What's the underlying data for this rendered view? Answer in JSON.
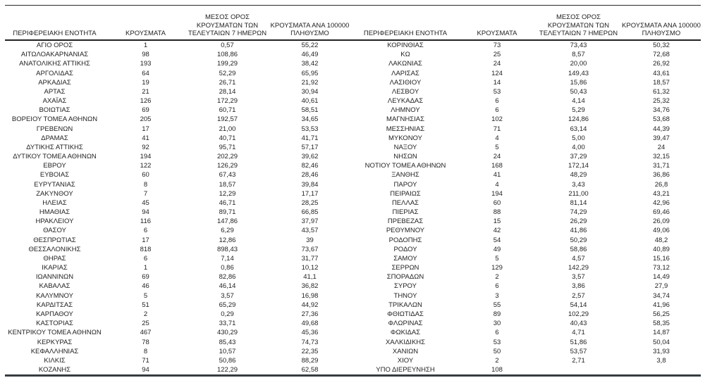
{
  "table": {
    "headers": {
      "region": "ΠΕΡΙΦΕΡΕΙΑΚΗ ΕΝΟΤΗΤΑ",
      "cases": "ΚΡΟΥΣΜΑΤΑ",
      "avg7": "ΜΕΣΟΣ ΟΡΟΣ\nΚΡΟΥΣΜΑΤΩΝ ΤΩΝ\nΤΕΛΕΥΤΑΙΩΝ 7 ΗΜΕΡΩΝ",
      "per100k": "ΚΡΟΥΣΜΑΤΑ ΑΝΑ 100000\nΠΛΗΘΥΣΜΟ"
    },
    "left_rows": [
      [
        "ΑΓΙΟ ΟΡΟΣ",
        "1",
        "0,57",
        "55,22"
      ],
      [
        "ΑΙΤΩΛΟΑΚΑΡΝΑΝΙΑΣ",
        "98",
        "108,86",
        "46,49"
      ],
      [
        "ΑΝΑΤΟΛΙΚΗΣ ΑΤΤΙΚΗΣ",
        "193",
        "199,29",
        "38,42"
      ],
      [
        "ΑΡΓΟΛΙΔΑΣ",
        "64",
        "52,29",
        "65,95"
      ],
      [
        "ΑΡΚΑΔΙΑΣ",
        "19",
        "26,71",
        "21,92"
      ],
      [
        "ΑΡΤΑΣ",
        "21",
        "28,14",
        "30,94"
      ],
      [
        "ΑΧΑΪΑΣ",
        "126",
        "172,29",
        "40,61"
      ],
      [
        "ΒΟΙΩΤΙΑΣ",
        "69",
        "60,71",
        "58,51"
      ],
      [
        "ΒΟΡΕΙΟΥ ΤΟΜΕΑ ΑΘΗΝΩΝ",
        "205",
        "192,57",
        "34,65"
      ],
      [
        "ΓΡΕΒΕΝΩΝ",
        "17",
        "21,00",
        "53,53"
      ],
      [
        "ΔΡΑΜΑΣ",
        "41",
        "40,71",
        "41,71"
      ],
      [
        "ΔΥΤΙΚΗΣ ΑΤΤΙΚΗΣ",
        "92",
        "95,71",
        "57,17"
      ],
      [
        "ΔΥΤΙΚΟΥ ΤΟΜΕΑ ΑΘΗΝΩΝ",
        "194",
        "202,29",
        "39,62"
      ],
      [
        "ΕΒΡΟΥ",
        "122",
        "126,29",
        "82,46"
      ],
      [
        "ΕΥΒΟΙΑΣ",
        "60",
        "67,43",
        "28,46"
      ],
      [
        "ΕΥΡΥΤΑΝΙΑΣ",
        "8",
        "18,57",
        "39,84"
      ],
      [
        "ΖΑΚΥΝΘΟΥ",
        "7",
        "12,29",
        "17,17"
      ],
      [
        "ΗΛΕΙΑΣ",
        "45",
        "46,71",
        "28,25"
      ],
      [
        "ΗΜΑΘΙΑΣ",
        "94",
        "89,71",
        "66,85"
      ],
      [
        "ΗΡΑΚΛΕΙΟΥ",
        "116",
        "147,86",
        "37,97"
      ],
      [
        "ΘΑΣΟΥ",
        "6",
        "6,29",
        "43,57"
      ],
      [
        "ΘΕΣΠΡΩΤΙΑΣ",
        "17",
        "12,86",
        "39"
      ],
      [
        "ΘΕΣΣΑΛΟΝΙΚΗΣ",
        "818",
        "898,43",
        "73,67"
      ],
      [
        "ΘΗΡΑΣ",
        "6",
        "7,14",
        "31,77"
      ],
      [
        "ΙΚΑΡΙΑΣ",
        "1",
        "0,86",
        "10,12"
      ],
      [
        "ΙΩΑΝΝΙΝΩΝ",
        "69",
        "82,86",
        "41,1"
      ],
      [
        "ΚΑΒΑΛΑΣ",
        "46",
        "46,14",
        "36,82"
      ],
      [
        "ΚΑΛΥΜΝΟΥ",
        "5",
        "3,57",
        "16,98"
      ],
      [
        "ΚΑΡΔΙΤΣΑΣ",
        "51",
        "65,29",
        "44,92"
      ],
      [
        "ΚΑΡΠΑΘΟΥ",
        "2",
        "0,29",
        "27,36"
      ],
      [
        "ΚΑΣΤΟΡΙΑΣ",
        "25",
        "33,71",
        "49,68"
      ],
      [
        "ΚΕΝΤΡΙΚΟΥ ΤΟΜΕΑ ΑΘΗΝΩΝ",
        "467",
        "430,29",
        "45,36"
      ],
      [
        "ΚΕΡΚΥΡΑΣ",
        "78",
        "85,43",
        "74,73"
      ],
      [
        "ΚΕΦΑΛΛΗΝΙΑΣ",
        "8",
        "10,57",
        "22,35"
      ],
      [
        "ΚΙΛΚΙΣ",
        "71",
        "50,86",
        "88,29"
      ],
      [
        "ΚΟΖΑΝΗΣ",
        "94",
        "122,29",
        "62,58"
      ]
    ],
    "right_rows": [
      [
        "ΚΟΡΙΝΘΙΑΣ",
        "73",
        "73,43",
        "50,32"
      ],
      [
        "ΚΩ",
        "25",
        "8,57",
        "72,68"
      ],
      [
        "ΛΑΚΩΝΙΑΣ",
        "24",
        "20,00",
        "26,92"
      ],
      [
        "ΛΑΡΙΣΑΣ",
        "124",
        "149,43",
        "43,61"
      ],
      [
        "ΛΑΣΙΘΙΟΥ",
        "14",
        "15,86",
        "18,57"
      ],
      [
        "ΛΕΣΒΟΥ",
        "53",
        "50,43",
        "61,32"
      ],
      [
        "ΛΕΥΚΑΔΑΣ",
        "6",
        "4,14",
        "25,32"
      ],
      [
        "ΛΗΜΝΟΥ",
        "6",
        "5,29",
        "34,76"
      ],
      [
        "ΜΑΓΝΗΣΙΑΣ",
        "102",
        "124,86",
        "53,68"
      ],
      [
        "ΜΕΣΣΗΝΙΑΣ",
        "71",
        "63,14",
        "44,39"
      ],
      [
        "ΜΥΚΟΝΟΥ",
        "4",
        "5,00",
        "39,47"
      ],
      [
        "ΝΑΞΟΥ",
        "5",
        "4,00",
        "24"
      ],
      [
        "ΝΗΣΩΝ",
        "24",
        "37,29",
        "32,15"
      ],
      [
        "ΝΟΤΙΟΥ ΤΟΜΕΑ ΑΘΗΝΩΝ",
        "168",
        "172,14",
        "31,71"
      ],
      [
        "ΞΑΝΘΗΣ",
        "41",
        "48,29",
        "36,86"
      ],
      [
        "ΠΑΡΟΥ",
        "4",
        "3,43",
        "26,8"
      ],
      [
        "ΠΕΙΡΑΙΩΣ",
        "194",
        "211,00",
        "43,21"
      ],
      [
        "ΠΕΛΛΑΣ",
        "60",
        "81,14",
        "42,96"
      ],
      [
        "ΠΙΕΡΙΑΣ",
        "88",
        "74,29",
        "69,46"
      ],
      [
        "ΠΡΕΒΕΖΑΣ",
        "15",
        "26,29",
        "26,09"
      ],
      [
        "ΡΕΘΥΜΝΟΥ",
        "42",
        "41,86",
        "49,06"
      ],
      [
        "ΡΟΔΟΠΗΣ",
        "54",
        "50,29",
        "48,2"
      ],
      [
        "ΡΟΔΟΥ",
        "49",
        "58,86",
        "40,89"
      ],
      [
        "ΣΑΜΟΥ",
        "5",
        "4,57",
        "15,16"
      ],
      [
        "ΣΕΡΡΩΝ",
        "129",
        "142,29",
        "73,12"
      ],
      [
        "ΣΠΟΡΑΔΩΝ",
        "2",
        "3,57",
        "14,49"
      ],
      [
        "ΣΥΡΟΥ",
        "6",
        "3,86",
        "27,9"
      ],
      [
        "ΤΗΝΟΥ",
        "3",
        "2,57",
        "34,74"
      ],
      [
        "ΤΡΙΚΑΛΩΝ",
        "55",
        "54,14",
        "41,96"
      ],
      [
        "ΦΘΙΩΤΙΔΑΣ",
        "89",
        "102,29",
        "56,25"
      ],
      [
        "ΦΛΩΡΙΝΑΣ",
        "30",
        "40,43",
        "58,35"
      ],
      [
        "ΦΩΚΙΔΑΣ",
        "6",
        "4,71",
        "14,87"
      ],
      [
        "ΧΑΛΚΙΔΙΚΗΣ",
        "53",
        "51,86",
        "50,04"
      ],
      [
        "ΧΑΝΙΩΝ",
        "50",
        "53,57",
        "31,93"
      ],
      [
        "ΧΙΟΥ",
        "2",
        "2,71",
        "3,8"
      ],
      [
        "ΥΠΟ ΔΙΕΡΕΥΝΗΣΗ",
        "108",
        "",
        ""
      ]
    ]
  },
  "colors": {
    "background": "#ffffff",
    "text": "#1f1f1f",
    "rule": "#2b2b2b"
  }
}
